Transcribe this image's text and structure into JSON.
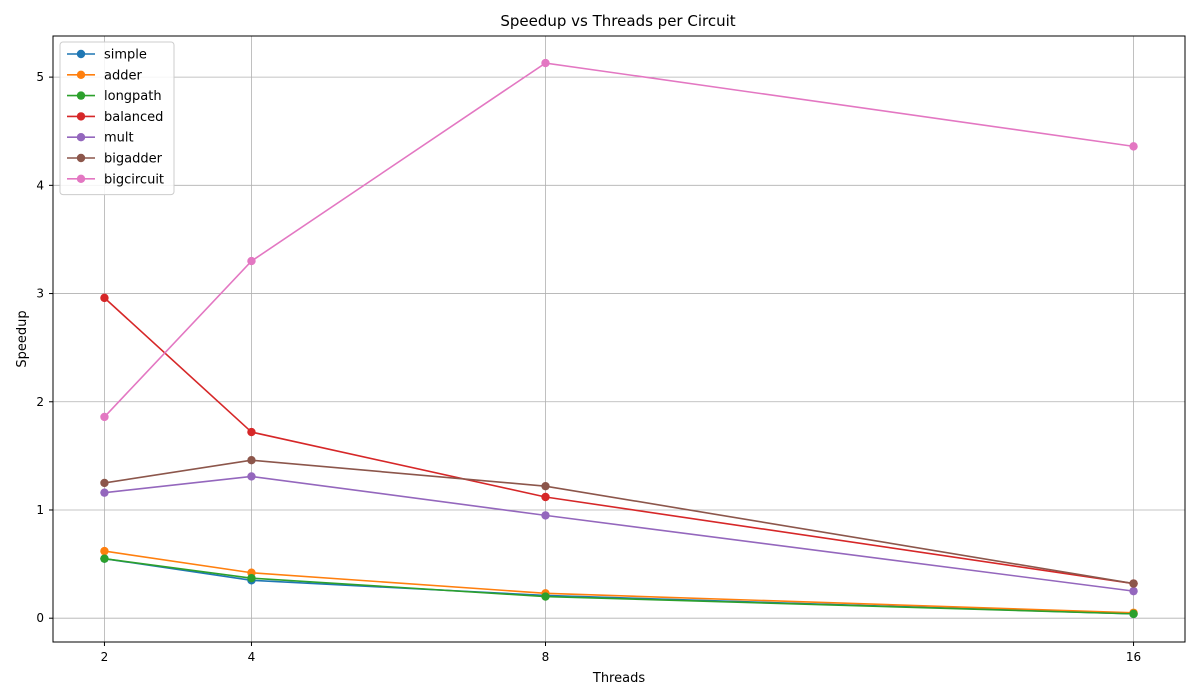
{
  "chart_data": {
    "type": "line",
    "title": "Speedup vs Threads per Circuit",
    "xlabel": "Threads",
    "ylabel": "Speedup",
    "x": [
      2,
      4,
      8,
      16
    ],
    "xticks": [
      "2",
      "4",
      "8",
      "16"
    ],
    "yticks": [
      "0",
      "1",
      "2",
      "3",
      "4",
      "5"
    ],
    "xlim": [
      1.3,
      16.7
    ],
    "ylim": [
      -0.22,
      5.38
    ],
    "grid": true,
    "legend_position": "top-left",
    "series": [
      {
        "name": "simple",
        "color": "#1f77b4",
        "values": [
          0.55,
          0.35,
          0.21,
          0.04
        ]
      },
      {
        "name": "adder",
        "color": "#ff7f0e",
        "values": [
          0.62,
          0.42,
          0.23,
          0.05
        ]
      },
      {
        "name": "longpath",
        "color": "#2ca02c",
        "values": [
          0.55,
          0.37,
          0.2,
          0.04
        ]
      },
      {
        "name": "balanced",
        "color": "#d62728",
        "values": [
          2.96,
          1.72,
          1.12,
          0.32
        ]
      },
      {
        "name": "mult",
        "color": "#9467bd",
        "values": [
          1.16,
          1.31,
          0.95,
          0.25
        ]
      },
      {
        "name": "bigadder",
        "color": "#8c564b",
        "values": [
          1.25,
          1.46,
          1.22,
          0.32
        ]
      },
      {
        "name": "bigcircuit",
        "color": "#e377c2",
        "values": [
          1.86,
          3.3,
          5.13,
          4.36
        ]
      }
    ]
  }
}
